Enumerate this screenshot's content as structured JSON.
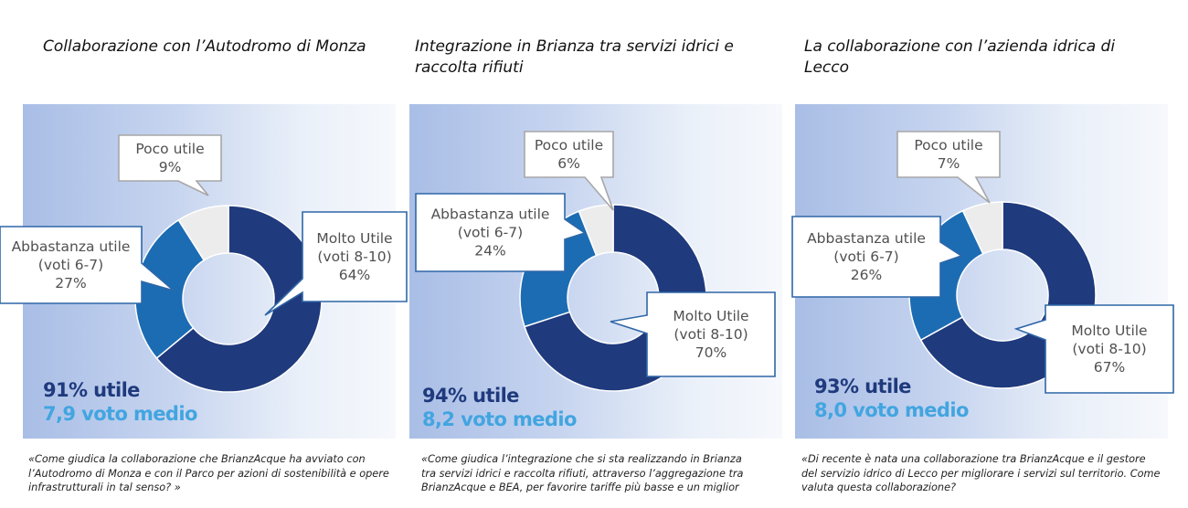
{
  "chart_data": [
    {
      "type": "pie",
      "title": "Collaborazione con l’Autodromo di Monza",
      "slices": [
        {
          "name": "Molto Utile (voti 8-10)",
          "label_lines": [
            "Molto Utile",
            "(voti 8-10)"
          ],
          "value": 64,
          "value_label": "64%",
          "color": "#1f3a7d"
        },
        {
          "name": "Abbastanza utile (voti 6-7)",
          "label_lines": [
            "Abbastanza utile",
            "(voti 6-7)"
          ],
          "value": 27,
          "value_label": "27%",
          "color": "#1c6cb4"
        },
        {
          "name": "Poco utile",
          "label_lines": [
            "Poco utile"
          ],
          "value": 9,
          "value_label": "9%",
          "color": "#ececec"
        }
      ],
      "summary_useful": "91% utile",
      "summary_avg": "7,9 voto medio",
      "question": "«Come giudica la collaborazione che BrianzAcque ha avviato con l’Autodromo di Monza e con il Parco per azioni di sostenibilità e opere infrastrutturali in tal senso? »"
    },
    {
      "type": "pie",
      "title": "Integrazione in Brianza tra servizi idrici  e raccolta rifiuti",
      "slices": [
        {
          "name": "Molto Utile (voti 8-10)",
          "label_lines": [
            "Molto Utile",
            "(voti 8-10)"
          ],
          "value": 70,
          "value_label": "70%",
          "color": "#1f3a7d"
        },
        {
          "name": "Abbastanza utile (voti 6-7)",
          "label_lines": [
            "Abbastanza utile",
            "(voti 6-7)"
          ],
          "value": 24,
          "value_label": "24%",
          "color": "#1c6cb4"
        },
        {
          "name": "Poco utile",
          "label_lines": [
            "Poco utile"
          ],
          "value": 6,
          "value_label": "6%",
          "color": "#ececec"
        }
      ],
      "summary_useful": "94% utile",
      "summary_avg": "8,2 voto medio",
      "question": "«Come giudica l’integrazione che si sta realizzando in Brianza tra servizi idrici e raccolta rifiuti, attraverso l’aggregazione tra BrianzAcque e BEA, per favorire tariffe più basse e un miglior servizio?"
    },
    {
      "type": "pie",
      "title": "La collaborazione con l’azienda idrica di Lecco",
      "slices": [
        {
          "name": "Molto Utile (voti 8-10)",
          "label_lines": [
            "Molto Utile",
            "(voti 8-10)"
          ],
          "value": 67,
          "value_label": "67%",
          "color": "#1f3a7d"
        },
        {
          "name": "Abbastanza utile (voti 6-7)",
          "label_lines": [
            "Abbastanza utile",
            "(voti 6-7)"
          ],
          "value": 26,
          "value_label": "26%",
          "color": "#1c6cb4"
        },
        {
          "name": "Poco utile",
          "label_lines": [
            "Poco utile"
          ],
          "value": 7,
          "value_label": "7%",
          "color": "#ececec"
        }
      ],
      "summary_useful": "93% utile",
      "summary_avg": "8,0 voto medio",
      "question": "«Di recente è nata una collaborazione tra BrianzAcque e il gestore del servizio idrico di Lecco per migliorare i servizi sul territorio. Come valuta questa collaborazione?"
    }
  ]
}
